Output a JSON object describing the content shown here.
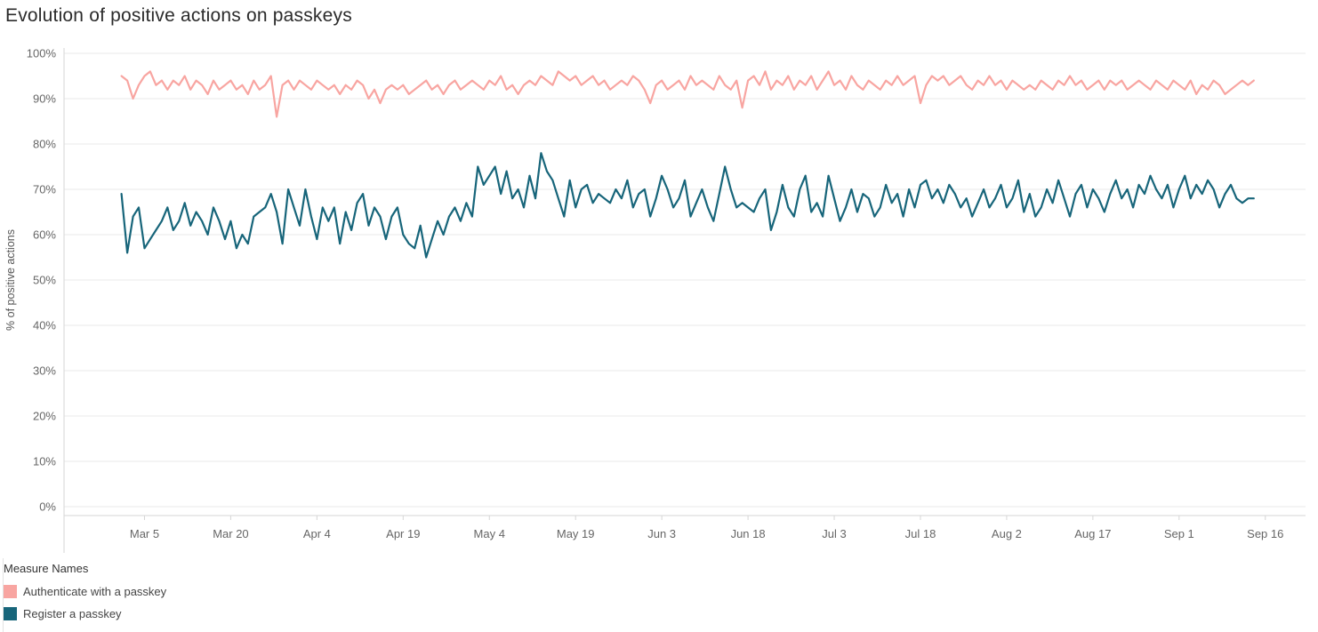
{
  "title": "Evolution of positive actions on passkeys",
  "legend": {
    "title": "Measure Names"
  },
  "chart_data": {
    "type": "line",
    "title": "Evolution of positive actions on passkeys",
    "x_axis": {
      "domain_days": [
        -10,
        206
      ],
      "ticks": [
        {
          "label": "Mar 5",
          "day": 4
        },
        {
          "label": "Mar 20",
          "day": 19
        },
        {
          "label": "Apr 4",
          "day": 34
        },
        {
          "label": "Apr 19",
          "day": 49
        },
        {
          "label": "May 4",
          "day": 64
        },
        {
          "label": "May 19",
          "day": 79
        },
        {
          "label": "Jun 3",
          "day": 94
        },
        {
          "label": "Jun 18",
          "day": 109
        },
        {
          "label": "Jul 3",
          "day": 124
        },
        {
          "label": "Jul 18",
          "day": 139
        },
        {
          "label": "Aug 2",
          "day": 154
        },
        {
          "label": "Aug 17",
          "day": 169
        },
        {
          "label": "Sep 1",
          "day": 184
        },
        {
          "label": "Sep 16",
          "day": 199
        }
      ]
    },
    "y_axis": {
      "label": "% of positive actions",
      "min": 0,
      "max": 100,
      "tick_step": 10,
      "tick_suffix": "%"
    },
    "x_start_day": 0,
    "series": [
      {
        "name": "Authenticate with a passkey",
        "color": "#f8a5a1",
        "values": [
          95,
          94,
          90,
          93,
          95,
          96,
          93,
          94,
          92,
          94,
          93,
          95,
          92,
          94,
          93,
          91,
          94,
          92,
          93,
          94,
          92,
          93,
          91,
          94,
          92,
          93,
          95,
          86,
          93,
          94,
          92,
          94,
          93,
          92,
          94,
          93,
          92,
          93,
          91,
          93,
          92,
          94,
          93,
          90,
          92,
          89,
          92,
          93,
          92,
          93,
          91,
          92,
          93,
          94,
          92,
          93,
          91,
          93,
          94,
          92,
          93,
          94,
          93,
          92,
          94,
          93,
          95,
          92,
          93,
          91,
          93,
          94,
          93,
          95,
          94,
          93,
          96,
          95,
          94,
          95,
          93,
          94,
          95,
          93,
          94,
          92,
          93,
          94,
          93,
          95,
          94,
          92,
          89,
          93,
          94,
          92,
          93,
          94,
          92,
          95,
          93,
          94,
          93,
          92,
          95,
          93,
          92,
          94,
          88,
          94,
          95,
          93,
          96,
          92,
          94,
          93,
          95,
          92,
          94,
          93,
          95,
          92,
          94,
          96,
          93,
          94,
          92,
          95,
          93,
          92,
          94,
          93,
          92,
          94,
          93,
          95,
          93,
          94,
          95,
          89,
          93,
          95,
          94,
          95,
          93,
          94,
          95,
          93,
          92,
          94,
          93,
          95,
          93,
          94,
          92,
          94,
          93,
          92,
          93,
          92,
          94,
          93,
          92,
          94,
          93,
          95,
          93,
          94,
          92,
          93,
          94,
          92,
          94,
          93,
          94,
          92,
          93,
          94,
          93,
          92,
          94,
          93,
          92,
          94,
          93,
          92,
          94,
          91,
          93,
          92,
          94,
          93,
          91,
          92,
          93,
          94,
          93,
          94
        ]
      },
      {
        "name": "Register a passkey",
        "color": "#17657a",
        "values": [
          69,
          56,
          64,
          66,
          57,
          59,
          61,
          63,
          66,
          61,
          63,
          67,
          62,
          65,
          63,
          60,
          66,
          63,
          59,
          63,
          57,
          60,
          58,
          64,
          65,
          66,
          69,
          65,
          58,
          70,
          66,
          62,
          70,
          64,
          59,
          66,
          63,
          66,
          58,
          65,
          61,
          67,
          69,
          62,
          66,
          64,
          59,
          64,
          66,
          60,
          58,
          57,
          62,
          55,
          59,
          63,
          60,
          64,
          66,
          63,
          67,
          64,
          75,
          71,
          73,
          75,
          69,
          74,
          68,
          70,
          66,
          73,
          68,
          78,
          74,
          72,
          68,
          64,
          72,
          66,
          70,
          71,
          67,
          69,
          68,
          67,
          70,
          68,
          72,
          66,
          69,
          70,
          64,
          68,
          73,
          70,
          66,
          68,
          72,
          64,
          67,
          70,
          66,
          63,
          69,
          75,
          70,
          66,
          67,
          66,
          65,
          68,
          70,
          61,
          65,
          71,
          66,
          64,
          70,
          73,
          65,
          67,
          64,
          73,
          68,
          63,
          66,
          70,
          65,
          69,
          68,
          64,
          66,
          71,
          67,
          69,
          64,
          70,
          66,
          71,
          72,
          68,
          70,
          67,
          71,
          69,
          66,
          68,
          64,
          67,
          70,
          66,
          68,
          71,
          66,
          68,
          72,
          65,
          69,
          64,
          66,
          70,
          67,
          72,
          68,
          64,
          69,
          71,
          66,
          70,
          68,
          65,
          69,
          72,
          68,
          70,
          66,
          71,
          69,
          73,
          70,
          68,
          71,
          66,
          70,
          73,
          68,
          71,
          69,
          72,
          70,
          66,
          69,
          71,
          68,
          67,
          68,
          68
        ]
      }
    ],
    "style": {
      "grid_color": "#e9e9e9",
      "axis_color": "#d6d6d6",
      "tick_label_color": "#666666",
      "axis_title_color": "#555555"
    }
  }
}
